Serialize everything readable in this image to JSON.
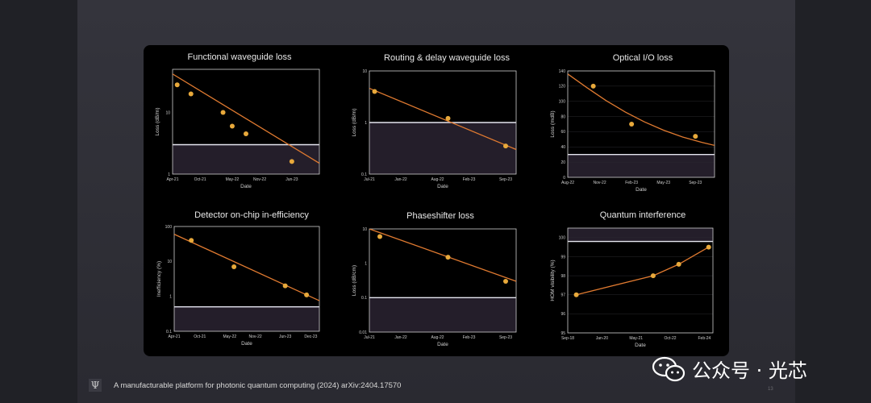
{
  "footer": {
    "citation": "A manufacturable platform for photonic quantum computing (2024) arXiv:2404.17570",
    "logo_glyph": "Ψ",
    "page_number": "13"
  },
  "watermark": {
    "icon": "wechat-icon",
    "name": "公众号 · 光芯"
  },
  "colors": {
    "line": "#e07a30",
    "point": "#e8a93b",
    "target_line": "#e6e6f0",
    "target_region": "#241e2a",
    "frame": "#cfcfcf"
  },
  "chart_data": [
    {
      "id": "functional",
      "type": "scatter",
      "title": "Functional waveguide loss",
      "xlabel": "Date",
      "ylabel": "Loss (dB/m)",
      "yscale": "log",
      "ylim": [
        1,
        50
      ],
      "xlim": [
        0,
        32
      ],
      "xtick_pos": [
        0,
        6,
        13,
        19,
        26
      ],
      "xticks": [
        "Apr-21",
        "Oct-21",
        "May-22",
        "Nov-22",
        "Jun-23"
      ],
      "ytick_vals": [
        1,
        10
      ],
      "yticks": [
        "1",
        "10"
      ],
      "points": [
        [
          1,
          28
        ],
        [
          4,
          20
        ],
        [
          11,
          10
        ],
        [
          13,
          6
        ],
        [
          16,
          4.5
        ],
        [
          26,
          1.6
        ]
      ],
      "fit": [
        [
          0,
          42
        ],
        [
          32,
          1.5
        ]
      ],
      "target": 3
    },
    {
      "id": "routing",
      "type": "scatter",
      "title": "Routing & delay waveguide loss",
      "xlabel": "Date",
      "ylabel": "Loss (dB/m)",
      "yscale": "log",
      "ylim": [
        0.1,
        10
      ],
      "xlim": [
        0,
        28
      ],
      "xtick_pos": [
        0,
        6,
        13,
        19,
        26
      ],
      "xticks": [
        "Jul-21",
        "Jan-22",
        "Aug-22",
        "Feb-23",
        "Sep-23"
      ],
      "ytick_vals": [
        0.1,
        1,
        10
      ],
      "yticks": [
        "0.1",
        "1",
        "10"
      ],
      "points": [
        [
          1,
          4
        ],
        [
          15,
          1.2
        ],
        [
          26,
          0.35
        ]
      ],
      "fit": [
        [
          0,
          4.6
        ],
        [
          28,
          0.3
        ]
      ],
      "target": 1
    },
    {
      "id": "optical_io",
      "type": "scatter",
      "title": "Optical I/O loss",
      "xlabel": "Date",
      "ylabel": "Loss (mdB)",
      "yscale": "linear",
      "ylim": [
        0,
        140
      ],
      "xlim": [
        0,
        23
      ],
      "xtick_pos": [
        0,
        5,
        10,
        15,
        20
      ],
      "xticks": [
        "Aug-22",
        "Nov-22",
        "Feb-23",
        "May-23",
        "Sep-23"
      ],
      "ytick_vals": [
        0,
        20,
        40,
        60,
        80,
        100,
        120,
        140
      ],
      "yticks": [
        "0",
        "20",
        "40",
        "60",
        "80",
        "100",
        "120",
        "140"
      ],
      "points": [
        [
          4,
          120
        ],
        [
          10,
          70
        ],
        [
          20,
          54
        ]
      ],
      "fit_curve": [
        [
          0,
          136
        ],
        [
          3,
          118
        ],
        [
          6,
          101
        ],
        [
          9,
          86
        ],
        [
          12,
          73
        ],
        [
          15,
          62
        ],
        [
          18,
          53
        ],
        [
          21,
          46
        ],
        [
          23,
          42
        ]
      ],
      "target": 30
    },
    {
      "id": "detector",
      "type": "scatter",
      "title": "Detector on-chip in-efficiency",
      "xlabel": "Date",
      "ylabel": "Inefficiency (%)",
      "yscale": "log",
      "ylim": [
        0.1,
        100
      ],
      "xlim": [
        0,
        34
      ],
      "xtick_pos": [
        0,
        6,
        13,
        19,
        26,
        32
      ],
      "xticks": [
        "Apr-21",
        "Oct-21",
        "May-22",
        "Nov-22",
        "Jun-23",
        "Dec-23"
      ],
      "ytick_vals": [
        0.1,
        1,
        10,
        100
      ],
      "yticks": [
        "0.1",
        "1",
        "10",
        "100"
      ],
      "points": [
        [
          4,
          40
        ],
        [
          14,
          7
        ],
        [
          26,
          2
        ],
        [
          31,
          1.1
        ]
      ],
      "fit": [
        [
          0,
          60
        ],
        [
          34,
          0.75
        ]
      ],
      "target": 0.5
    },
    {
      "id": "phaseshifter",
      "type": "scatter",
      "title": "Phaseshifter loss",
      "xlabel": "Date",
      "ylabel": "Loss (dB/cm)",
      "yscale": "log",
      "ylim": [
        0.01,
        10
      ],
      "xlim": [
        0,
        28
      ],
      "xtick_pos": [
        0,
        6,
        13,
        19,
        26
      ],
      "xticks": [
        "Jul-21",
        "Jan-22",
        "Aug-22",
        "Feb-23",
        "Sep-23"
      ],
      "ytick_vals": [
        0.01,
        0.1,
        1,
        10
      ],
      "yticks": [
        "0.01",
        "0.1",
        "1",
        "10"
      ],
      "points": [
        [
          2,
          6
        ],
        [
          15,
          1.5
        ],
        [
          26,
          0.3
        ]
      ],
      "fit": [
        [
          0,
          10
        ],
        [
          28,
          0.3
        ]
      ],
      "target": 0.1
    },
    {
      "id": "hom",
      "type": "line",
      "title": "Quantum interference",
      "xlabel": "Date",
      "ylabel": "HOM visibility (%)",
      "yscale": "linear",
      "ylim": [
        95,
        100.5
      ],
      "xlim": [
        0,
        68
      ],
      "xtick_pos": [
        0,
        16,
        32,
        48,
        64
      ],
      "xticks": [
        "Sep-18",
        "Jan-20",
        "May-21",
        "Oct-22",
        "Feb-24"
      ],
      "ytick_vals": [
        95,
        96,
        97,
        98,
        99,
        100
      ],
      "yticks": [
        "95",
        "96",
        "97",
        "98",
        "99",
        "100"
      ],
      "points": [
        [
          4,
          97
        ],
        [
          40,
          98
        ],
        [
          52,
          98.6
        ],
        [
          66,
          99.5
        ]
      ],
      "target": 99.8
    }
  ]
}
